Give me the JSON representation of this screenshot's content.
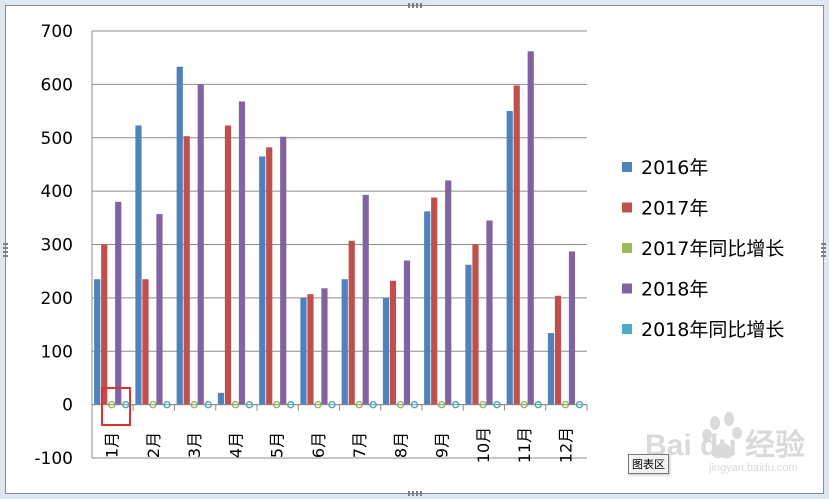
{
  "chart_data": {
    "type": "bar",
    "categories": [
      "1月",
      "2月",
      "3月",
      "4月",
      "5月",
      "6月",
      "7月",
      "8月",
      "9月",
      "10月",
      "11月",
      "12月"
    ],
    "series": [
      {
        "name": "2016年",
        "color": "#4f81bd",
        "values": [
          235,
          523,
          633,
          22,
          465,
          200,
          235,
          200,
          362,
          262,
          550,
          134
        ]
      },
      {
        "name": "2017年",
        "color": "#c0504d",
        "values": [
          300,
          235,
          503,
          523,
          482,
          207,
          307,
          232,
          388,
          300,
          598,
          204
        ]
      },
      {
        "name": "2017年同比增长",
        "color": "#9bbb59",
        "values": [
          0,
          0,
          0,
          0,
          0,
          0,
          0,
          0,
          0,
          0,
          0,
          0
        ]
      },
      {
        "name": "2018年",
        "color": "#8064a2",
        "values": [
          380,
          357,
          600,
          568,
          502,
          218,
          393,
          270,
          420,
          345,
          662,
          287
        ]
      },
      {
        "name": "2018年同比增长",
        "color": "#4bacc6",
        "values": [
          0,
          0,
          0,
          0,
          0,
          0,
          0,
          0,
          0,
          0,
          0,
          0
        ]
      }
    ],
    "yticks": [
      "700",
      "600",
      "500",
      "400",
      "300",
      "200",
      "100",
      "0",
      "-100"
    ],
    "ylim": [
      -100,
      700
    ],
    "gridlines": true,
    "legend_position": "right"
  },
  "ui": {
    "tooltip": "图表区",
    "watermark_text": "Bai du 经验",
    "watermark_url": "jingyan.baidu.com"
  }
}
